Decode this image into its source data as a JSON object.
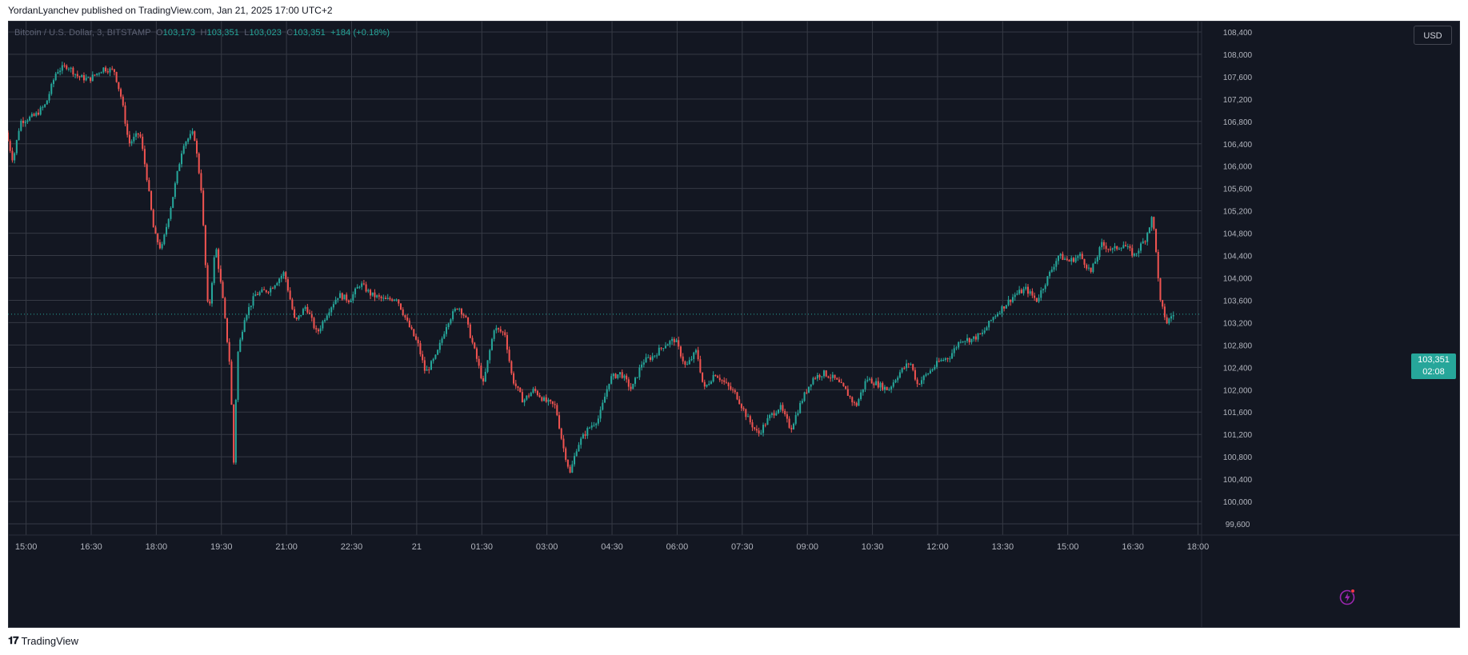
{
  "attribution": "YordanLyanchev published on TradingView.com, Jan 21, 2025 17:00 UTC+2",
  "legend": {
    "symbol": "Bitcoin / U.S. Dollar, 3, BITSTAMP",
    "o_label": "O",
    "o_value": "103,173",
    "h_label": "H",
    "h_value": "103,351",
    "l_label": "L",
    "l_value": "103,023",
    "c_label": "C",
    "c_value": "103,351",
    "change": "+184 (+0.18%)"
  },
  "currency": "USD",
  "last_price": {
    "price": "103,351",
    "countdown": "02:08",
    "value": 103351
  },
  "footer": {
    "brand": "TradingView",
    "logo_icon": "tradingview-logo-icon"
  },
  "bolt_icon": "lightning-bolt-icon",
  "colors": {
    "background": "#131722",
    "grid": "#363a45",
    "up": "#26a69a",
    "down": "#ef5350",
    "axis_text": "#b2b5be",
    "accent": "#9c27b0"
  },
  "chart_data": {
    "type": "candlestick",
    "title": "Bitcoin / U.S. Dollar, 3, BITSTAMP",
    "timeframe_minutes": 3,
    "x_range": [
      "Jan 20 14:35",
      "Jan 21 18:05"
    ],
    "ylim": [
      99400,
      108600
    ],
    "y_ticks": [
      99600,
      100000,
      100400,
      100800,
      101200,
      101600,
      102000,
      102400,
      102800,
      103200,
      103600,
      104000,
      104400,
      104800,
      105200,
      105600,
      106000,
      106400,
      106800,
      107200,
      107600,
      108000,
      108400
    ],
    "y_tick_labels": [
      "99,600",
      "100,000",
      "100,400",
      "100,800",
      "101,200",
      "101,600",
      "102,000",
      "102,400",
      "102,800",
      "103,200",
      "103,600",
      "104,000",
      "104,400",
      "104,800",
      "105,200",
      "105,600",
      "106,000",
      "106,400",
      "106,800",
      "107,200",
      "107,600",
      "108,000",
      "108,400"
    ],
    "x_ticks": [
      "15:00",
      "16:30",
      "18:00",
      "19:30",
      "21:00",
      "22:30",
      "21",
      "01:30",
      "03:00",
      "04:30",
      "06:00",
      "07:30",
      "09:00",
      "10:30",
      "12:00",
      "13:30",
      "15:00",
      "16:30",
      "18:00"
    ],
    "price_path": [
      [
        "Jan 20 14:35",
        106600
      ],
      [
        "Jan 20 14:45",
        106100
      ],
      [
        "Jan 20 14:55",
        106800
      ],
      [
        "Jan 20 15:15",
        106900
      ],
      [
        "Jan 20 15:30",
        107100
      ],
      [
        "Jan 20 15:45",
        107700
      ],
      [
        "Jan 20 16:00",
        107800
      ],
      [
        "Jan 20 16:15",
        107600
      ],
      [
        "Jan 20 16:30",
        107550
      ],
      [
        "Jan 20 16:50",
        107750
      ],
      [
        "Jan 20 17:05",
        107700
      ],
      [
        "Jan 20 17:15",
        107200
      ],
      [
        "Jan 20 17:25",
        106400
      ],
      [
        "Jan 20 17:40",
        106600
      ],
      [
        "Jan 20 17:50",
        105800
      ],
      [
        "Jan 20 18:00",
        104800
      ],
      [
        "Jan 20 18:10",
        104500
      ],
      [
        "Jan 20 18:25",
        105400
      ],
      [
        "Jan 20 18:40",
        106400
      ],
      [
        "Jan 20 18:55",
        106600
      ],
      [
        "Jan 20 19:05",
        105600
      ],
      [
        "Jan 20 19:15",
        103300
      ],
      [
        "Jan 20 19:25",
        104600
      ],
      [
        "Jan 20 19:35",
        103600
      ],
      [
        "Jan 20 19:45",
        102400
      ],
      [
        "Jan 20 19:50",
        100700
      ],
      [
        "Jan 20 19:55",
        102600
      ],
      [
        "Jan 20 20:05",
        103300
      ],
      [
        "Jan 20 20:20",
        103700
      ],
      [
        "Jan 20 20:40",
        103800
      ],
      [
        "Jan 20 21:00",
        104100
      ],
      [
        "Jan 20 21:15",
        103200
      ],
      [
        "Jan 20 21:30",
        103500
      ],
      [
        "Jan 20 21:45",
        103000
      ],
      [
        "Jan 20 22:00",
        103400
      ],
      [
        "Jan 20 22:15",
        103700
      ],
      [
        "Jan 20 22:30",
        103600
      ],
      [
        "Jan 20 22:45",
        103900
      ],
      [
        "Jan 20 23:00",
        103700
      ],
      [
        "Jan 20 23:20",
        103600
      ],
      [
        "Jan 20 23:35",
        103650
      ],
      [
        "Jan 20 23:50",
        103200
      ],
      [
        "Jan 21 00:05",
        102800
      ],
      [
        "Jan 21 00:15",
        102300
      ],
      [
        "Jan 21 00:30",
        102600
      ],
      [
        "Jan 21 00:45",
        103200
      ],
      [
        "Jan 21 01:00",
        103500
      ],
      [
        "Jan 21 01:10",
        103300
      ],
      [
        "Jan 21 01:25",
        102600
      ],
      [
        "Jan 21 01:35",
        102100
      ],
      [
        "Jan 21 01:50",
        103100
      ],
      [
        "Jan 21 02:05",
        103000
      ],
      [
        "Jan 21 02:15",
        102200
      ],
      [
        "Jan 21 02:30",
        101800
      ],
      [
        "Jan 21 02:45",
        102000
      ],
      [
        "Jan 21 03:00",
        101800
      ],
      [
        "Jan 21 03:15",
        101700
      ],
      [
        "Jan 21 03:25",
        101000
      ],
      [
        "Jan 21 03:35",
        100500
      ],
      [
        "Jan 21 03:45",
        101000
      ],
      [
        "Jan 21 04:00",
        101300
      ],
      [
        "Jan 21 04:15",
        101500
      ],
      [
        "Jan 21 04:30",
        102200
      ],
      [
        "Jan 21 04:45",
        102300
      ],
      [
        "Jan 21 05:00",
        102000
      ],
      [
        "Jan 21 05:15",
        102500
      ],
      [
        "Jan 21 05:30",
        102600
      ],
      [
        "Jan 21 05:45",
        102800
      ],
      [
        "Jan 21 06:00",
        102900
      ],
      [
        "Jan 21 06:15",
        102400
      ],
      [
        "Jan 21 06:30",
        102700
      ],
      [
        "Jan 21 06:40",
        102000
      ],
      [
        "Jan 21 06:55",
        102300
      ],
      [
        "Jan 21 07:10",
        102100
      ],
      [
        "Jan 21 07:25",
        101900
      ],
      [
        "Jan 21 07:40",
        101500
      ],
      [
        "Jan 21 07:55",
        101200
      ],
      [
        "Jan 21 08:10",
        101500
      ],
      [
        "Jan 21 08:25",
        101700
      ],
      [
        "Jan 21 08:40",
        101300
      ],
      [
        "Jan 21 08:55",
        101800
      ],
      [
        "Jan 21 09:10",
        102200
      ],
      [
        "Jan 21 09:25",
        102300
      ],
      [
        "Jan 21 09:40",
        102200
      ],
      [
        "Jan 21 09:55",
        102000
      ],
      [
        "Jan 21 10:10",
        101700
      ],
      [
        "Jan 21 10:25",
        102200
      ],
      [
        "Jan 21 10:40",
        102100
      ],
      [
        "Jan 21 10:55",
        102000
      ],
      [
        "Jan 21 11:10",
        102300
      ],
      [
        "Jan 21 11:25",
        102500
      ],
      [
        "Jan 21 11:35",
        102100
      ],
      [
        "Jan 21 11:50",
        102300
      ],
      [
        "Jan 21 12:05",
        102500
      ],
      [
        "Jan 21 12:20",
        102600
      ],
      [
        "Jan 21 12:35",
        102900
      ],
      [
        "Jan 21 12:50",
        102900
      ],
      [
        "Jan 21 13:05",
        103000
      ],
      [
        "Jan 21 13:20",
        103300
      ],
      [
        "Jan 21 13:35",
        103500
      ],
      [
        "Jan 21 13:50",
        103700
      ],
      [
        "Jan 21 14:05",
        103800
      ],
      [
        "Jan 21 14:20",
        103600
      ],
      [
        "Jan 21 14:35",
        104000
      ],
      [
        "Jan 21 14:50",
        104400
      ],
      [
        "Jan 21 15:05",
        104300
      ],
      [
        "Jan 21 15:20",
        104400
      ],
      [
        "Jan 21 15:35",
        104100
      ],
      [
        "Jan 21 15:50",
        104600
      ],
      [
        "Jan 21 16:05",
        104500
      ],
      [
        "Jan 21 16:20",
        104600
      ],
      [
        "Jan 21 16:35",
        104400
      ],
      [
        "Jan 21 16:50",
        104700
      ],
      [
        "Jan 21 17:00",
        105100
      ],
      [
        "Jan 21 17:05",
        104500
      ],
      [
        "Jan 21 17:10",
        103600
      ],
      [
        "Jan 21 17:20",
        103200
      ],
      [
        "Jan 21 17:28",
        103351
      ]
    ]
  }
}
